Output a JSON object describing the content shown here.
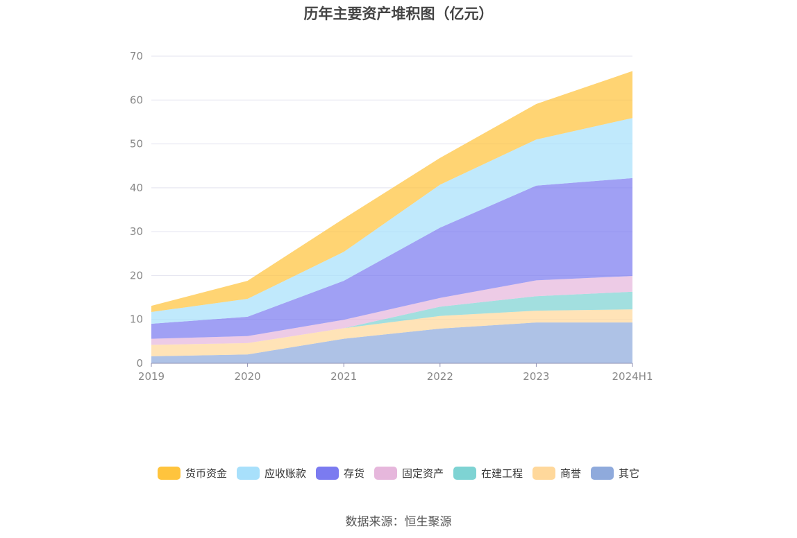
{
  "chart_data": {
    "type": "area",
    "stacked": true,
    "title": "历年主要资产堆积图（亿元）",
    "categories": [
      "2019",
      "2020",
      "2021",
      "2022",
      "2023",
      "2024H1"
    ],
    "ylim": [
      0,
      70
    ],
    "yticks": [
      0,
      10,
      20,
      30,
      40,
      50,
      60,
      70
    ],
    "grid": true,
    "legend_position": "bottom",
    "series": [
      {
        "name": "其它",
        "color": "#8FAADC",
        "values": [
          1.6,
          2.0,
          5.6,
          7.9,
          9.3,
          9.3
        ]
      },
      {
        "name": "商誉",
        "color": "#FFD89B",
        "values": [
          2.6,
          2.6,
          2.4,
          2.9,
          2.7,
          3.0
        ]
      },
      {
        "name": "在建工程",
        "color": "#7ED3D3",
        "values": [
          0.0,
          0.0,
          0.0,
          2.1,
          3.3,
          4.0
        ]
      },
      {
        "name": "固定资产",
        "color": "#E6B7DC",
        "values": [
          1.4,
          1.6,
          1.9,
          2.0,
          3.6,
          3.6
        ]
      },
      {
        "name": "存货",
        "color": "#7B7BF0",
        "values": [
          3.4,
          4.4,
          8.9,
          16.0,
          21.6,
          22.3
        ]
      },
      {
        "name": "应收账款",
        "color": "#A8E0FB",
        "values": [
          2.7,
          4.1,
          6.6,
          9.8,
          10.5,
          13.7
        ]
      },
      {
        "name": "货币资金",
        "color": "#FFC43D",
        "values": [
          1.4,
          4.1,
          7.6,
          6.1,
          8.1,
          10.7
        ]
      }
    ]
  },
  "legend": [
    {
      "name": "货币资金",
      "color": "#FFC43D"
    },
    {
      "name": "应收账款",
      "color": "#A8E0FB"
    },
    {
      "name": "存货",
      "color": "#7B7BF0"
    },
    {
      "name": "固定资产",
      "color": "#E6B7DC"
    },
    {
      "name": "在建工程",
      "color": "#7ED3D3"
    },
    {
      "name": "商誉",
      "color": "#FFD89B"
    },
    {
      "name": "其它",
      "color": "#8FAADC"
    }
  ],
  "source": "数据来源：恒生聚源"
}
